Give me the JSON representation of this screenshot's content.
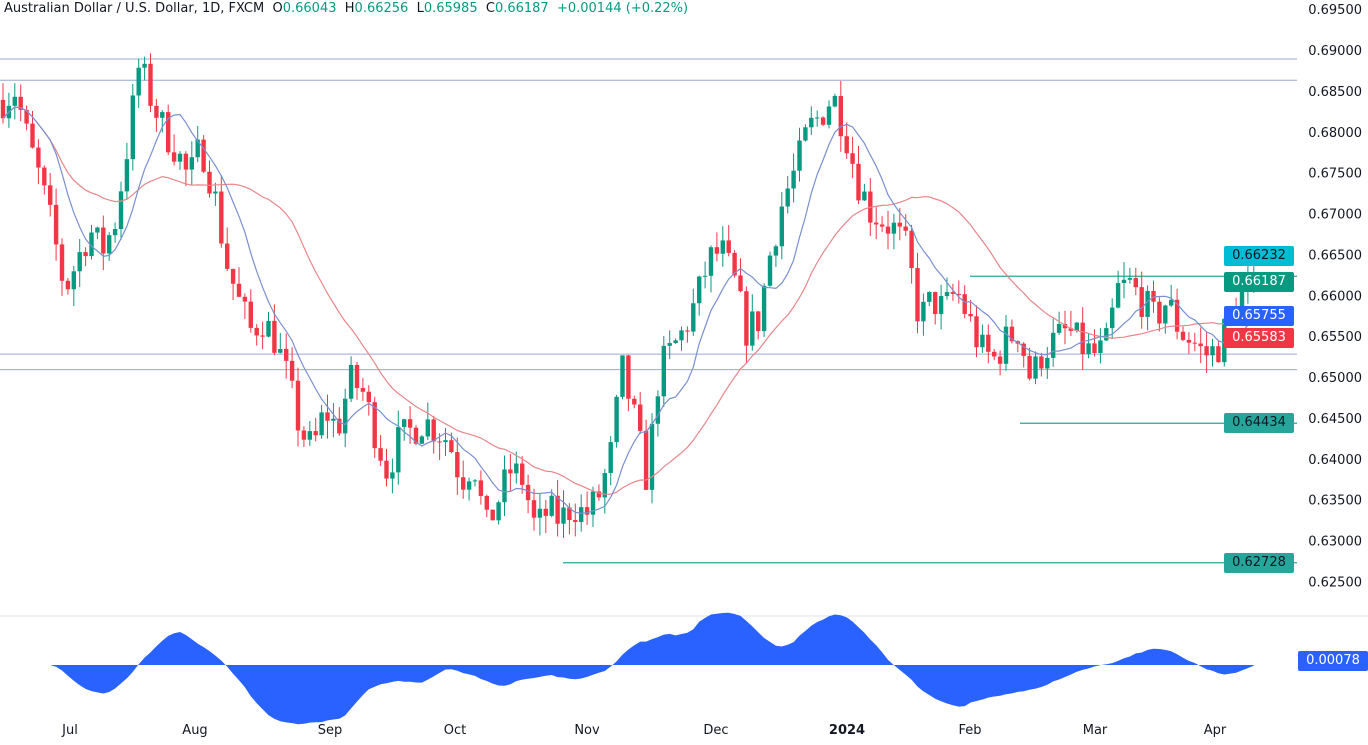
{
  "legend": {
    "symbol": "Australian Dollar / U.S. Dollar, 1D, FXCM",
    "open_prefix": "O",
    "open": "0.66043",
    "high_prefix": "H",
    "high": "0.66256",
    "low_prefix": "L",
    "low": "0.65985",
    "close_prefix": "C",
    "close": "0.66187",
    "change": "+0.00144 (+0.22%)"
  },
  "price_labels": {
    "resistance": "0.66232",
    "last": "0.66187",
    "ma_fast": "0.65755",
    "ma_slow": "0.65583",
    "support_1": "0.64434",
    "support_2": "0.62728",
    "oscillator": "0.00078"
  },
  "colors": {
    "up": "#089981",
    "down": "#f23645",
    "ma_fast": "#7a8fd1",
    "ma_slow": "#e8868a",
    "oscillator": "#2962ff",
    "level": "#26a69a",
    "zone": "#9aa7d8"
  },
  "chart_data": {
    "type": "candlestick",
    "title": "Australian Dollar / U.S. Dollar, 1D, FXCM",
    "x_tick_labels": [
      "Jul",
      "Aug",
      "Sep",
      "Oct",
      "Nov",
      "Dec",
      "2024",
      "Feb",
      "Mar",
      "Apr"
    ],
    "y_tick_labels": [
      "0.69500",
      "0.69000",
      "0.68500",
      "0.68000",
      "0.67500",
      "0.67000",
      "0.66500",
      "0.66000",
      "0.65500",
      "0.65000",
      "0.64500",
      "0.64000",
      "0.63500",
      "0.63000",
      "0.62500"
    ],
    "ylim": [
      0.6225,
      0.696
    ],
    "approx_close_path": [
      0.6839,
      0.6851,
      0.679,
      0.6741,
      0.668,
      0.6606,
      0.6643,
      0.668,
      0.6655,
      0.6686,
      0.6778,
      0.6882,
      0.6839,
      0.6802,
      0.6778,
      0.6741,
      0.6784,
      0.6729,
      0.6643,
      0.6594,
      0.6557,
      0.657,
      0.6545,
      0.6496,
      0.6435,
      0.6411,
      0.646,
      0.6435,
      0.6496,
      0.6484,
      0.6435,
      0.6386,
      0.6423,
      0.6435,
      0.6447,
      0.6435,
      0.6423,
      0.6374,
      0.6398,
      0.6313,
      0.635,
      0.6386,
      0.6374,
      0.6313,
      0.6337,
      0.6325,
      0.6343,
      0.6331,
      0.635,
      0.6398,
      0.6509,
      0.6447,
      0.6374,
      0.6509,
      0.6533,
      0.6557,
      0.6594,
      0.6643,
      0.6655,
      0.6619,
      0.6557,
      0.657,
      0.6655,
      0.6717,
      0.6753,
      0.6802,
      0.682,
      0.6845,
      0.6802,
      0.6741,
      0.6704,
      0.6692,
      0.668,
      0.6655,
      0.657,
      0.6594,
      0.6582,
      0.6606,
      0.657,
      0.6533,
      0.6521,
      0.6545,
      0.6557,
      0.6496,
      0.6533,
      0.6545,
      0.6557,
      0.6539,
      0.6527,
      0.6533,
      0.6606,
      0.6613,
      0.6594,
      0.657,
      0.6594,
      0.6557,
      0.6545,
      0.6527,
      0.6533,
      0.657,
      0.66,
      0.66187
    ],
    "horizontal_levels": [
      0.6889,
      0.6863,
      0.6528,
      0.6509
    ],
    "level_lines": [
      0.66232,
      0.64434,
      0.62728
    ],
    "moving_averages": [
      {
        "last": 0.65755
      },
      {
        "last": 0.65583
      }
    ],
    "oscillator": {
      "type": "area",
      "last": 0.00078
    }
  }
}
